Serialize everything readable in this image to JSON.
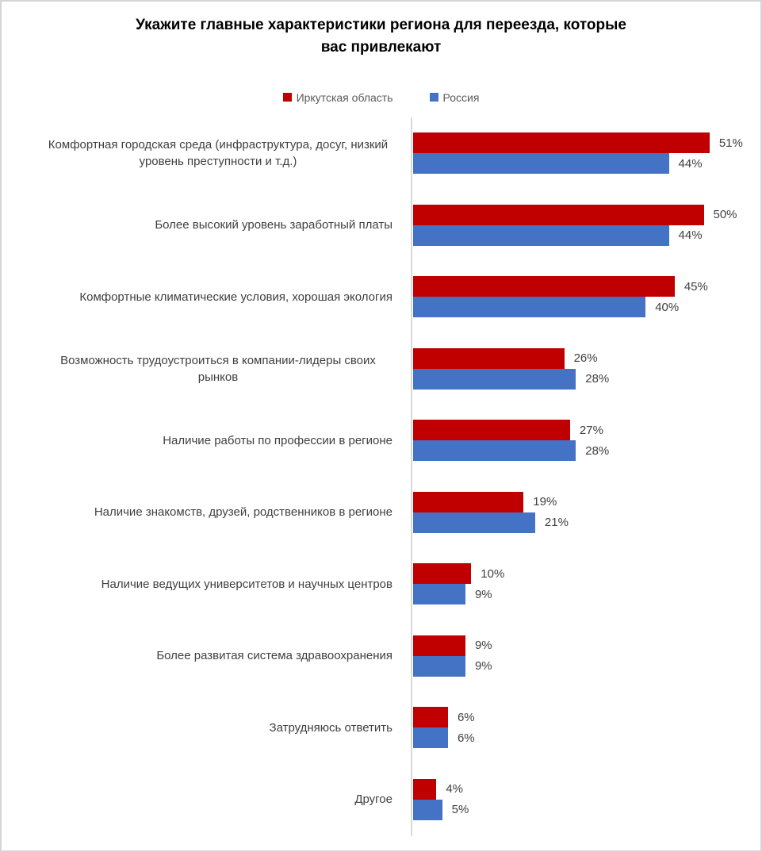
{
  "title": {
    "full": "Укажите главные характеристики региона для переезда, которые вас привлекают",
    "line1": "Укажите главные характеристики региона для переезда, которые",
    "line2": "вас привлекают"
  },
  "legend": {
    "items": [
      {
        "label": "Иркутская область",
        "color": "#C00000"
      },
      {
        "label": "Россия",
        "color": "#4472C4"
      }
    ],
    "position": "top"
  },
  "chart_data": {
    "type": "bar",
    "orientation": "horizontal",
    "title": "Укажите главные характеристики региона для переезда, которые вас привлекают",
    "xlabel": "",
    "ylabel": "",
    "xlim": [
      0,
      55
    ],
    "grid": false,
    "data_labels": true,
    "value_suffix": "%",
    "legend_position": "top",
    "categories": [
      "Комфортная городская среда (инфраструктура,  досуг, низкий уровень преступности и т.д.)",
      "Более высокий уровень заработный платы",
      "Комфортные климатические условия, хорошая экология",
      "Возможность трудоустроиться в компании-лидеры своих рынков",
      "Наличие работы по профессии в регионе",
      "Наличие знакомств, друзей, родственников в регионе",
      "Наличие ведущих университетов и научных центров",
      "Более развитая система здравоохранения",
      "Затрудняюсь ответить",
      "Другое"
    ],
    "series": [
      {
        "name": "Иркутская область",
        "color": "#C00000",
        "values": [
          51,
          50,
          45,
          26,
          27,
          19,
          10,
          9,
          6,
          4
        ]
      },
      {
        "name": "Россия",
        "color": "#4472C4",
        "values": [
          44,
          44,
          40,
          28,
          28,
          21,
          9,
          9,
          6,
          5
        ]
      }
    ]
  },
  "colors": {
    "series_irkutsk": "#C00000",
    "series_russia": "#4472C4",
    "axis_line": "#D9D9D9",
    "frame_border": "#D5D5D5",
    "category_text": "#404040",
    "value_text": "#404040",
    "legend_text": "#595959",
    "title_text": "#000000"
  }
}
